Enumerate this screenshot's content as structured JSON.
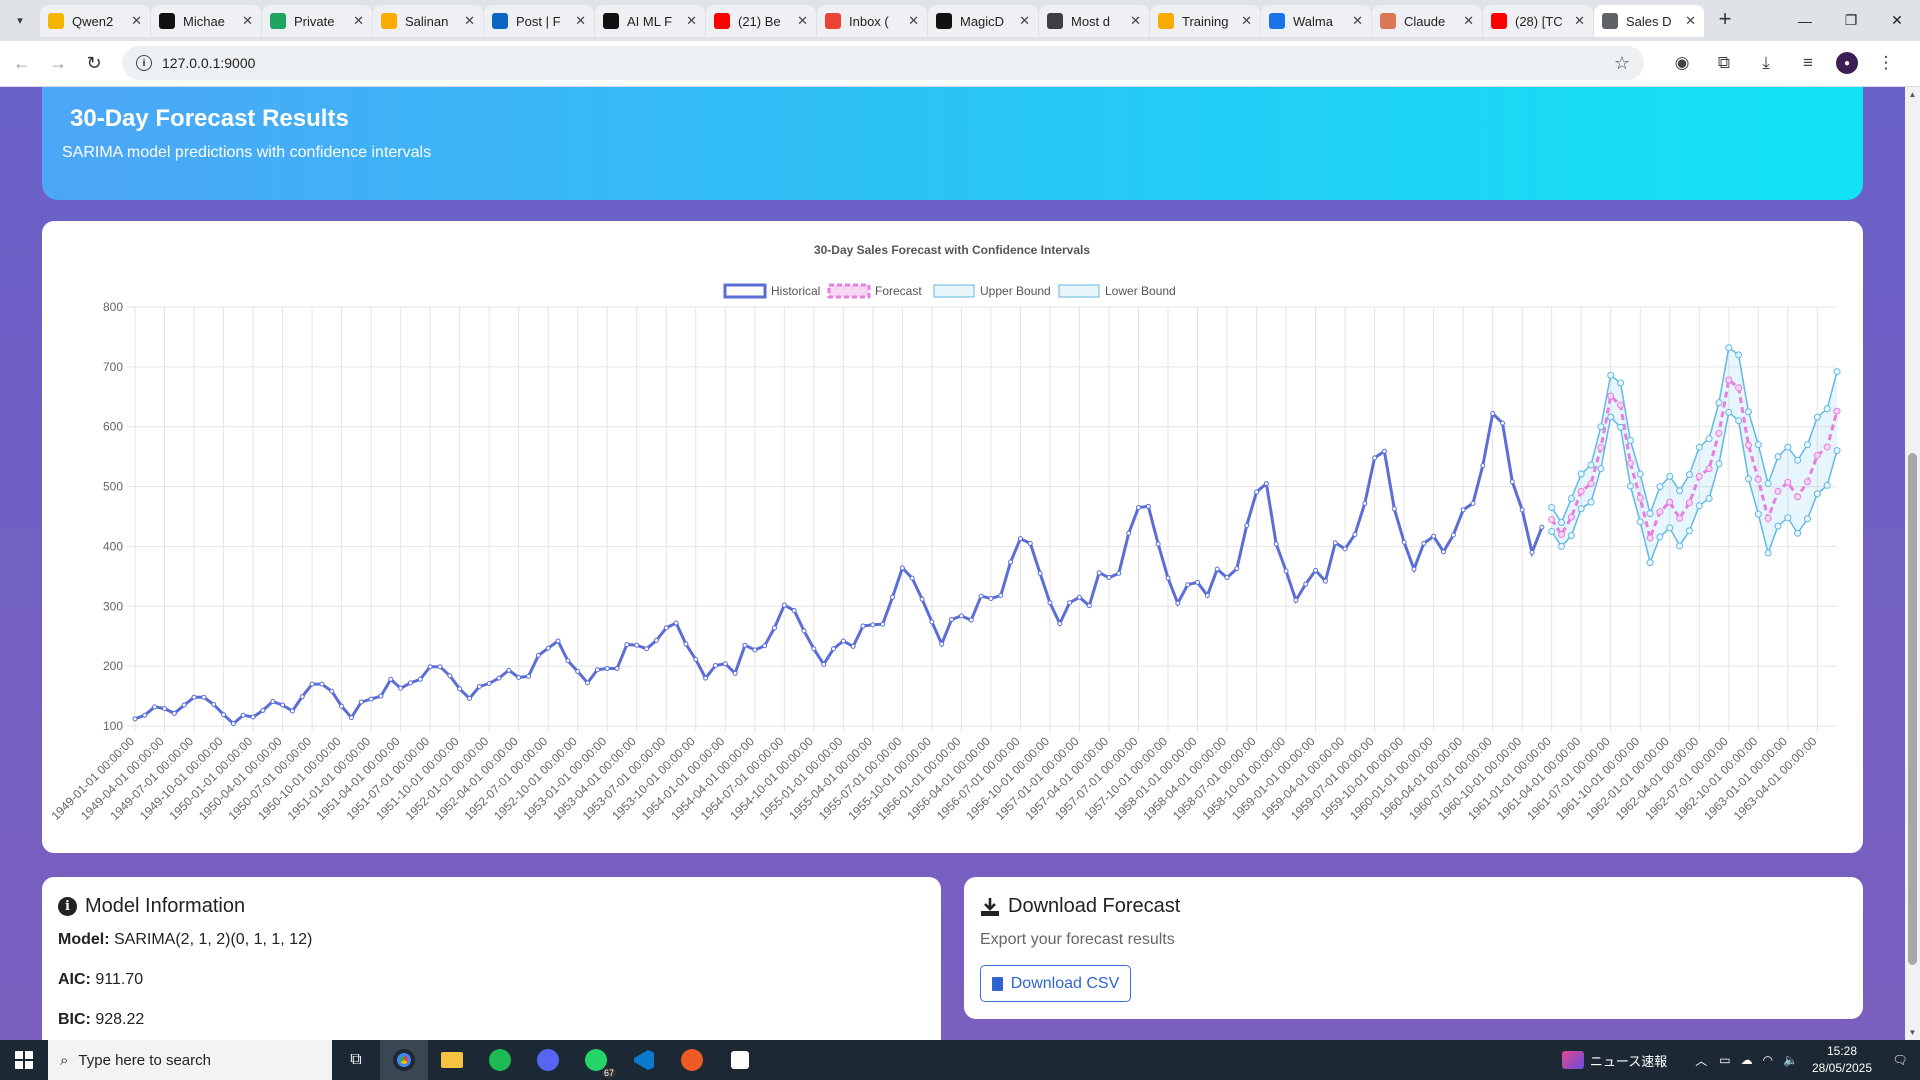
{
  "browser": {
    "tabs": [
      {
        "title": "Qwen2",
        "fav": "qwen-icon",
        "color": "#f5b400"
      },
      {
        "title": "Michae",
        "fav": "triangle-logo-icon",
        "color": "#111111"
      },
      {
        "title": "Private",
        "fav": "sheets-icon",
        "color": "#1fa463"
      },
      {
        "title": "Salinan",
        "fav": "colab-icon",
        "color": "#f9ab00"
      },
      {
        "title": "Post | F",
        "fav": "linkedin-icon",
        "color": "#0a66c2"
      },
      {
        "title": "AI ML F",
        "fav": "threads-icon",
        "color": "#111111"
      },
      {
        "title": "(21) Be",
        "fav": "youtube-icon",
        "color": "#ff0000"
      },
      {
        "title": "Inbox (",
        "fav": "gmail-icon",
        "color": "#ea4335"
      },
      {
        "title": "MagicD",
        "fav": "github-icon",
        "color": "#111111"
      },
      {
        "title": "Most d",
        "fav": "globe-icon",
        "color": "#3c4043"
      },
      {
        "title": "Training",
        "fav": "colab-icon",
        "color": "#f9ab00"
      },
      {
        "title": "Walma",
        "fav": "k-logo-icon",
        "color": "#1a73e8"
      },
      {
        "title": "Claude",
        "fav": "claude-icon",
        "color": "#d97757"
      },
      {
        "title": "(28) [TC",
        "fav": "youtube-icon",
        "color": "#ff0000"
      },
      {
        "title": "Sales D",
        "fav": "globe-icon",
        "color": "#5f6368",
        "active": true
      }
    ],
    "url": "127.0.0.1:9000"
  },
  "hero": {
    "title": "30-Day Forecast Results",
    "subtitle": "SARIMA model predictions with confidence intervals"
  },
  "chart_data": {
    "type": "line",
    "title": "30-Day Sales Forecast with Confidence Intervals",
    "ylim": [
      100,
      800
    ],
    "yticks": [
      100,
      200,
      300,
      400,
      500,
      600,
      700,
      800
    ],
    "grid": true,
    "legend_position": "top-center",
    "legend": [
      {
        "name": "Historical",
        "color": "#5b6ed6",
        "style": "solid"
      },
      {
        "name": "Forecast",
        "color": "#e77ee0",
        "style": "dashed"
      },
      {
        "name": "Upper Bound",
        "color": "#63b8e6",
        "style": "light"
      },
      {
        "name": "Lower Bound",
        "color": "#63b8e6",
        "style": "light"
      }
    ],
    "x_labels": [
      "1949-01-01 00:00:00",
      "1949-04-01 00:00:00",
      "1949-07-01 00:00:00",
      "1949-10-01 00:00:00",
      "1950-01-01 00:00:00",
      "1950-04-01 00:00:00",
      "1950-07-01 00:00:00",
      "1950-10-01 00:00:00",
      "1951-01-01 00:00:00",
      "1951-04-01 00:00:00",
      "1951-07-01 00:00:00",
      "1951-10-01 00:00:00",
      "1952-01-01 00:00:00",
      "1952-04-01 00:00:00",
      "1952-07-01 00:00:00",
      "1952-10-01 00:00:00",
      "1953-01-01 00:00:00",
      "1953-04-01 00:00:00",
      "1953-07-01 00:00:00",
      "1953-10-01 00:00:00",
      "1954-01-01 00:00:00",
      "1954-04-01 00:00:00",
      "1954-07-01 00:00:00",
      "1954-10-01 00:00:00",
      "1955-01-01 00:00:00",
      "1955-04-01 00:00:00",
      "1955-07-01 00:00:00",
      "1955-10-01 00:00:00",
      "1956-01-01 00:00:00",
      "1956-04-01 00:00:00",
      "1956-07-01 00:00:00",
      "1956-10-01 00:00:00",
      "1957-01-01 00:00:00",
      "1957-04-01 00:00:00",
      "1957-07-01 00:00:00",
      "1957-10-01 00:00:00",
      "1958-01-01 00:00:00",
      "1958-04-01 00:00:00",
      "1958-07-01 00:00:00",
      "1958-10-01 00:00:00",
      "1959-01-01 00:00:00",
      "1959-04-01 00:00:00",
      "1959-07-01 00:00:00",
      "1959-10-01 00:00:00",
      "1960-01-01 00:00:00",
      "1960-04-01 00:00:00",
      "1960-07-01 00:00:00",
      "1960-10-01 00:00:00",
      "1961-01-01 00:00:00",
      "1961-04-01 00:00:00",
      "1961-07-01 00:00:00",
      "1961-10-01 00:00:00",
      "1962-01-01 00:00:00",
      "1962-04-01 00:00:00",
      "1962-07-01 00:00:00",
      "1962-10-01 00:00:00",
      "1963-01-01 00:00:00",
      "1963-04-01 00:00:00"
    ],
    "historical": [
      112,
      118,
      132,
      129,
      121,
      135,
      148,
      148,
      136,
      119,
      104,
      118,
      115,
      126,
      141,
      135,
      125,
      149,
      170,
      170,
      158,
      133,
      114,
      140,
      145,
      150,
      178,
      163,
      172,
      178,
      199,
      199,
      184,
      162,
      146,
      166,
      171,
      180,
      193,
      181,
      183,
      218,
      230,
      242,
      209,
      191,
      172,
      194,
      196,
      196,
      236,
      235,
      229,
      243,
      264,
      272,
      237,
      211,
      180,
      201,
      204,
      188,
      235,
      227,
      234,
      264,
      302,
      293,
      259,
      229,
      203,
      229,
      242,
      233,
      267,
      269,
      270,
      315,
      364,
      347,
      312,
      274,
      237,
      278,
      284,
      277,
      317,
      313,
      318,
      374,
      413,
      405,
      355,
      306,
      271,
      306,
      315,
      301,
      356,
      348,
      355,
      422,
      465,
      467,
      404,
      347,
      305,
      336,
      340,
      318,
      362,
      348,
      363,
      435,
      491,
      505,
      404,
      359,
      310,
      337,
      360,
      342,
      406,
      396,
      420,
      472,
      548,
      559,
      463,
      407,
      362,
      405,
      417,
      391,
      419,
      461,
      472,
      535,
      622,
      606,
      508,
      461,
      390,
      432
    ],
    "forecast": [
      445,
      420,
      449,
      492,
      505,
      565,
      651,
      636,
      539,
      481,
      414,
      458,
      474,
      447,
      473,
      517,
      530,
      589,
      678,
      665,
      569,
      512,
      447,
      492,
      507,
      483,
      508,
      552,
      566,
      626
    ],
    "upper_bound": [
      465,
      440,
      480,
      521,
      536,
      600,
      686,
      673,
      577,
      521,
      455,
      500,
      517,
      493,
      520,
      566,
      580,
      640,
      732,
      720,
      625,
      570,
      505,
      550,
      566,
      544,
      570,
      616,
      630,
      692
    ],
    "lower_bound": [
      425,
      400,
      418,
      463,
      474,
      530,
      616,
      599,
      501,
      441,
      373,
      416,
      431,
      401,
      426,
      468,
      480,
      538,
      624,
      610,
      513,
      454,
      389,
      434,
      448,
      422,
      446,
      488,
      502,
      560
    ]
  },
  "model_info": {
    "title": "Model Information",
    "rows": [
      {
        "label": "Model:",
        "value": "SARIMA(2, 1, 2)(0, 1, 1, 12)"
      },
      {
        "label": "AIC:",
        "value": "911.70"
      },
      {
        "label": "BIC:",
        "value": "928.22"
      }
    ]
  },
  "download": {
    "title": "Download Forecast",
    "subtitle": "Export your forecast results",
    "button": "Download CSV"
  },
  "taskbar": {
    "search_placeholder": "Type here to search",
    "news": "ニュース速報",
    "time": "15:28",
    "date": "28/05/2025",
    "whatsapp_badge": "67"
  }
}
